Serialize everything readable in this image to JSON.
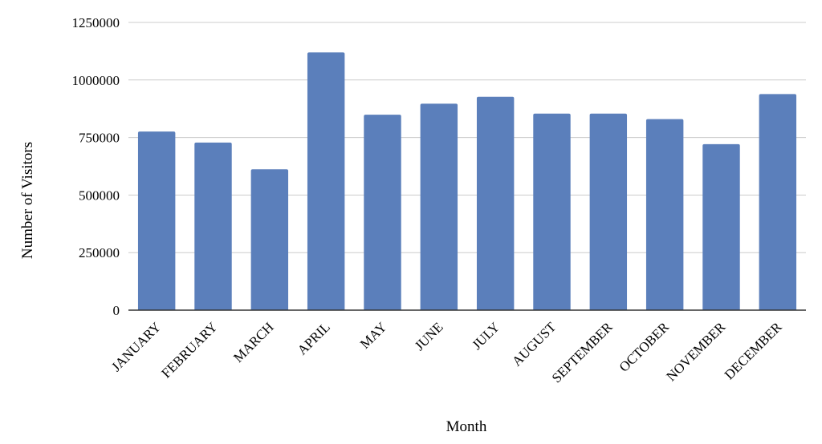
{
  "chart_data": {
    "type": "bar",
    "title": "",
    "xlabel": "Month",
    "ylabel": "Number of Visitors",
    "categories": [
      "JANUARY",
      "FEBRUARY",
      "MARCH",
      "APRIL",
      "MAY",
      "JUNE",
      "JULY",
      "AUGUST",
      "SEPTEMBER",
      "OCTOBER",
      "NOVEMBER",
      "DECEMBER"
    ],
    "values": [
      776000,
      728000,
      612000,
      1120000,
      849000,
      897000,
      927000,
      854000,
      854000,
      830000,
      721000,
      939000
    ],
    "ylim": [
      0,
      1250000
    ],
    "yticks": [
      "0",
      "250000",
      "500000",
      "750000",
      "1000000",
      "1250000"
    ],
    "ytick_values": [
      0,
      250000,
      500000,
      750000,
      1000000,
      1250000
    ],
    "grid": true,
    "legend": "none",
    "colors": {
      "bar": "#5b7fbb",
      "grid": "#cccccc",
      "axis": "#333333"
    }
  }
}
